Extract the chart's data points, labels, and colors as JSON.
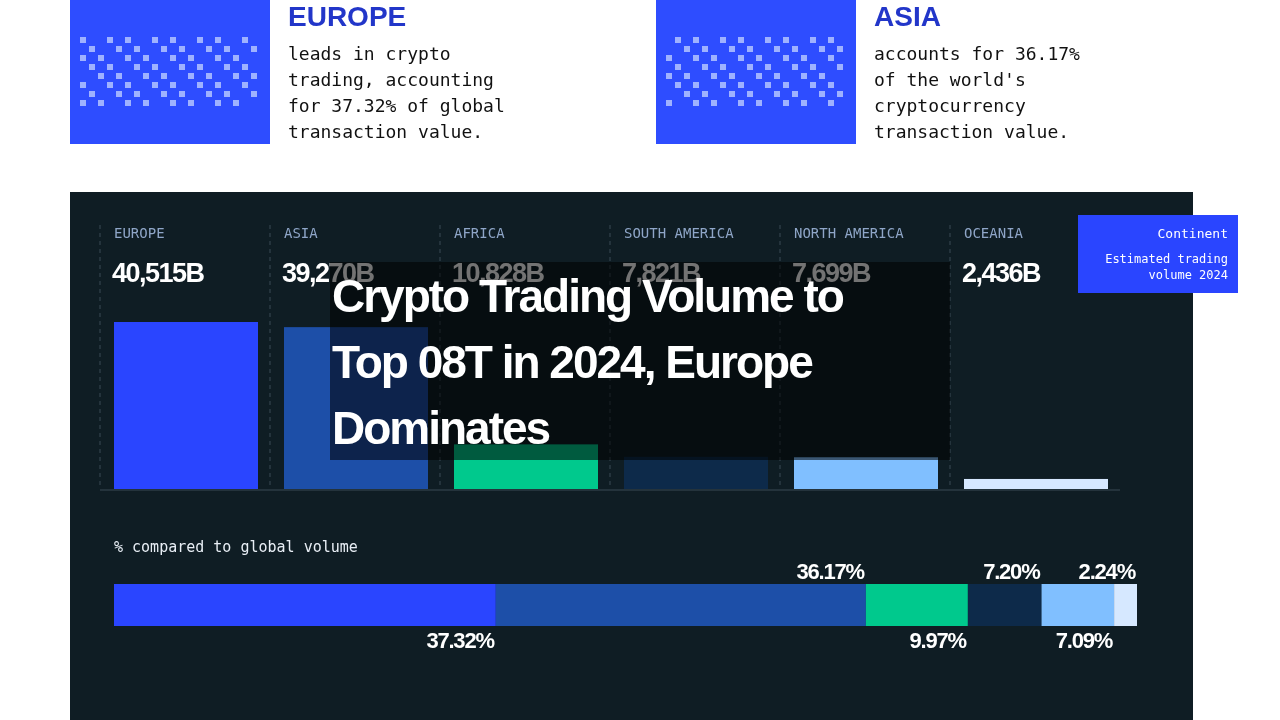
{
  "chart_data": [
    {
      "type": "other",
      "annotations": [
        "EUROPE",
        "leads in crypto trading, accounting for 37.32% of global transaction value.",
        "ASIA",
        "accounts for 36.17% of the world's cryptocurrency transaction value."
      ]
    },
    {
      "type": "bar",
      "title": "Crypto Trading Volume to Top 08T in 2024, Europe Dominates",
      "relative": false,
      "categories": [
        "EUROPE",
        "ASIA",
        "AFRICA",
        "SOUTH AMERICA",
        "NORTH AMERICA",
        "OCEANIA"
      ],
      "values": [
        40515,
        39270,
        10828,
        7821,
        7699,
        2436
      ],
      "value_labels": [
        "40,515B",
        "39,270B",
        "10,828B",
        "7,821B",
        "7,699B",
        "2,436B"
      ],
      "colors": [
        "#2a45ff",
        "#1d4fa8",
        "#00c98d",
        "#0d2a4a",
        "#80bfff",
        "#d6e8ff"
      ],
      "annotations": [
        "Continent",
        "Estimated trading volume 2024"
      ]
    },
    {
      "type": "bar",
      "title": "% compared to global volume",
      "orientation": "horizontal",
      "stacked": true,
      "categories": [
        null
      ],
      "series": [
        {
          "color": "#2a45ff",
          "values": [
            37.32
          ],
          "value_labels": [
            "37.32%"
          ]
        },
        {
          "color": "#1d4fa8",
          "values": [
            36.17
          ],
          "value_labels": [
            "36.17%"
          ]
        },
        {
          "color": "#00c98d",
          "values": [
            9.97
          ],
          "value_labels": [
            "9.97%"
          ]
        },
        {
          "color": "#0d2a4a",
          "values": [
            7.2
          ],
          "value_labels": [
            "7.20%"
          ]
        },
        {
          "color": "#80bfff",
          "values": [
            7.09
          ],
          "value_labels": [
            "7.09%"
          ]
        },
        {
          "color": "#d6e8ff",
          "values": [
            2.24
          ],
          "value_labels": [
            "2.24%"
          ]
        }
      ]
    }
  ]
}
